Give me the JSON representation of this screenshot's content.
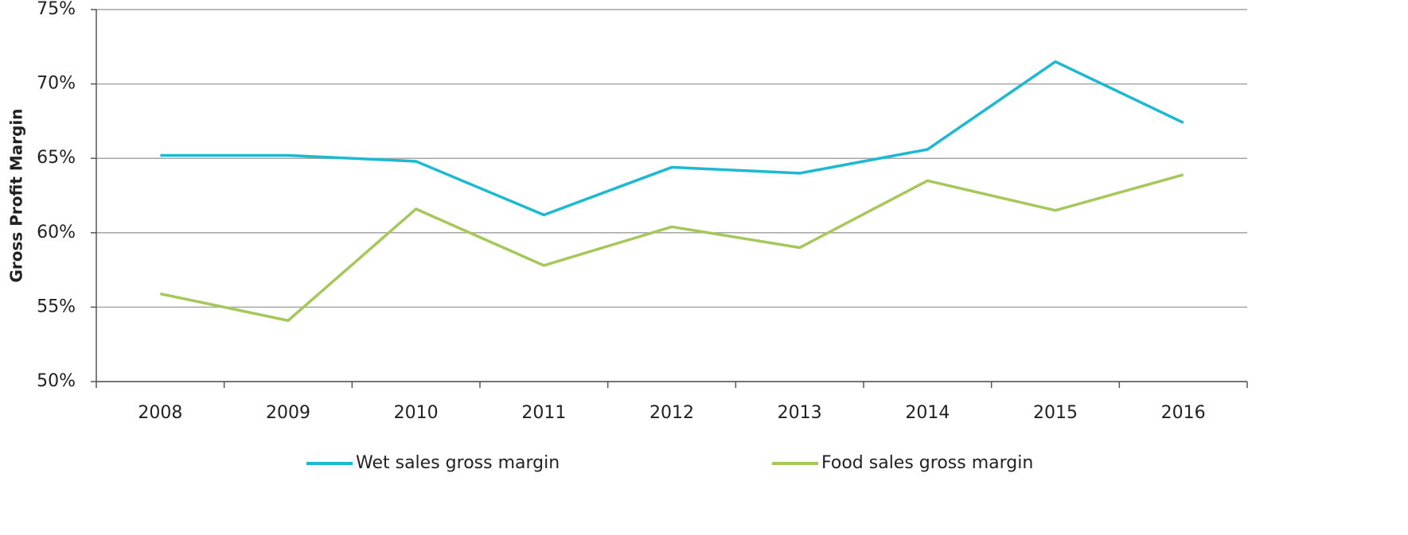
{
  "chart_data": {
    "type": "line",
    "y_label": "Gross Profit Margin",
    "categories": [
      "2008",
      "2009",
      "2010",
      "2011",
      "2012",
      "2013",
      "2014",
      "2015",
      "2016"
    ],
    "series": [
      {
        "name": "Wet sales gross margin",
        "color": "#1cb9d3",
        "values": [
          65.2,
          65.2,
          64.8,
          61.2,
          64.4,
          64.0,
          65.6,
          71.5,
          67.4
        ]
      },
      {
        "name": "Food sales gross margin",
        "color": "#a6c85b",
        "values": [
          55.9,
          54.1,
          61.6,
          57.8,
          60.4,
          59.0,
          63.5,
          61.5,
          63.9
        ]
      }
    ],
    "ylim": [
      50,
      75
    ],
    "yticks": [
      {
        "value": 50,
        "label": "50%"
      },
      {
        "value": 55,
        "label": "55%"
      },
      {
        "value": 60,
        "label": "60%"
      },
      {
        "value": 65,
        "label": "65%"
      },
      {
        "value": 70,
        "label": "70%"
      },
      {
        "value": 75,
        "label": "75%"
      }
    ],
    "grid": true,
    "legend": "bottom"
  }
}
